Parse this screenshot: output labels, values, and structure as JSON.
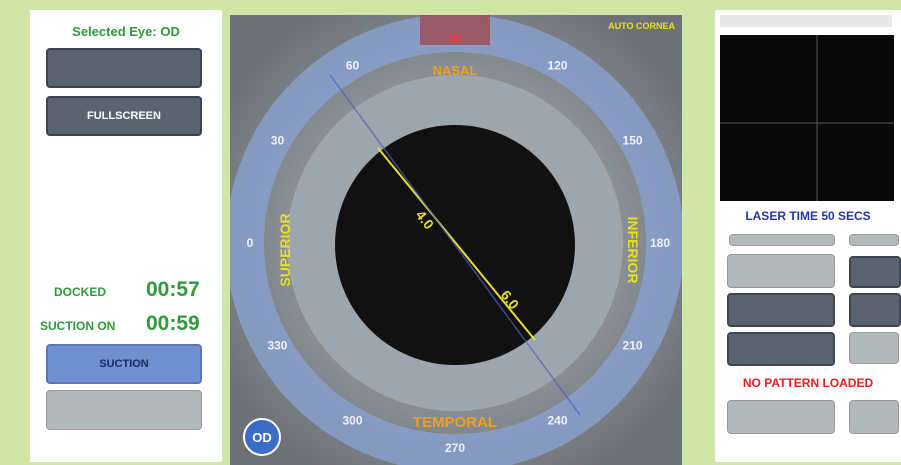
{
  "left_panel": {
    "selected_eye": "Selected Eye: OD",
    "fullscreen_button": "FULLSCREEN",
    "docked_label": "DOCKED",
    "docked_time": "00:57",
    "suction_on_label": "SUCTION ON",
    "suction_on_time": "00:59",
    "suction_button": "SUCTION"
  },
  "camera": {
    "top_label": "NASAL",
    "bottom_label": "TEMPORAL",
    "left_label": "SUPERIOR",
    "right_label": "INFERIOR",
    "top_right_note": "AUTO CORNEA",
    "eye_badge": "OD",
    "measure_inner": "4.0",
    "measure_outer": "6.0",
    "degree_labels": [
      "90",
      "60",
      "30",
      "0",
      "330",
      "300",
      "270",
      "240",
      "210",
      "180",
      "150",
      "120"
    ]
  },
  "right_panel": {
    "laser_time": "LASER TIME 50 SECS",
    "pattern_status": "NO PATTERN LOADED"
  }
}
